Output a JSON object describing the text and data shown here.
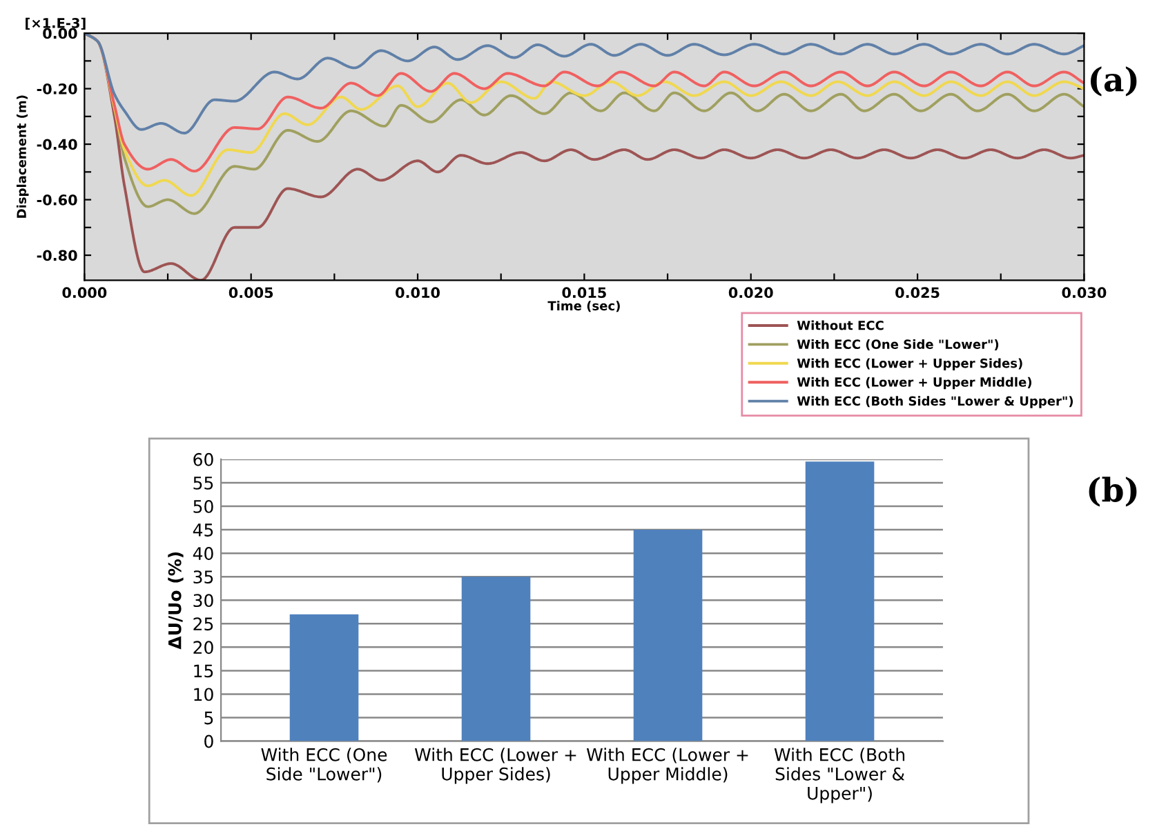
{
  "chart_data": [
    {
      "type": "line",
      "xlabel": "Time (sec)",
      "ylabel": "Displacement (m)",
      "annotations": [
        "[×1.E-3]",
        "(a)"
      ],
      "legend": "bottom",
      "xlim": [
        0,
        0.03
      ],
      "ylim": [
        -0.89,
        0
      ],
      "xticks": [
        {
          "value": 0,
          "label": "0.000"
        },
        {
          "value": 0.0025,
          "label": null
        },
        {
          "value": 0.005,
          "label": "0.005"
        },
        {
          "value": 0.0075,
          "label": null
        },
        {
          "value": 0.01,
          "label": "0.010"
        },
        {
          "value": 0.0125,
          "label": null
        },
        {
          "value": 0.015,
          "label": "0.015"
        },
        {
          "value": 0.0175,
          "label": null
        },
        {
          "value": 0.02,
          "label": "0.020"
        },
        {
          "value": 0.0225,
          "label": null
        },
        {
          "value": 0.025,
          "label": "0.025"
        },
        {
          "value": 0.0275,
          "label": null
        },
        {
          "value": 0.03,
          "label": "0.030"
        }
      ],
      "yticks": [
        {
          "value": -0.8,
          "label": "-0.80"
        },
        {
          "value": -0.7,
          "label": null
        },
        {
          "value": -0.6,
          "label": "-0.60"
        },
        {
          "value": -0.5,
          "label": null
        },
        {
          "value": -0.4,
          "label": "-0.40"
        },
        {
          "value": -0.3,
          "label": null
        },
        {
          "value": -0.2,
          "label": "-0.20"
        },
        {
          "value": -0.1,
          "label": null
        },
        {
          "value": 0,
          "label": "0.00"
        }
      ],
      "series": [
        {
          "name": "Without ECC",
          "color": "#9e5454",
          "x": [
            0,
            0.0004,
            0.0009,
            0.0012,
            0.0018,
            0.0026,
            0.0035,
            0.0045,
            0.0052,
            0.0061,
            0.0071,
            0.0082,
            0.0089,
            0.01,
            0.0106,
            0.0113,
            0.0121,
            0.0131,
            0.0138,
            0.0146,
            0.0153,
            0.0162,
            0.0169,
            0.0177,
            0.0185,
            0.0192,
            0.02,
            0.0208,
            0.0216,
            0.0224,
            0.0232,
            0.024,
            0.0248,
            0.0256,
            0.0264,
            0.0272,
            0.028,
            0.0288,
            0.0296,
            0.03
          ],
          "values": [
            0,
            -0.03,
            -0.3,
            -0.55,
            -0.86,
            -0.83,
            -0.89,
            -0.7,
            -0.7,
            -0.56,
            -0.59,
            -0.49,
            -0.53,
            -0.46,
            -0.5,
            -0.44,
            -0.47,
            -0.43,
            -0.46,
            -0.42,
            -0.455,
            -0.42,
            -0.455,
            -0.42,
            -0.45,
            -0.42,
            -0.45,
            -0.42,
            -0.45,
            -0.42,
            -0.45,
            -0.42,
            -0.45,
            -0.42,
            -0.45,
            -0.42,
            -0.45,
            -0.42,
            -0.45,
            -0.44
          ]
        },
        {
          "name": "With ECC (One Side \"Lower\")",
          "color": "#a0a060",
          "x": [
            0,
            0.0004,
            0.0009,
            0.0012,
            0.0019,
            0.0025,
            0.0033,
            0.0045,
            0.0051,
            0.0061,
            0.007,
            0.008,
            0.009,
            0.0095,
            0.0104,
            0.0113,
            0.012,
            0.0128,
            0.0138,
            0.0146,
            0.0155,
            0.0162,
            0.0171,
            0.0177,
            0.0186,
            0.0194,
            0.0202,
            0.021,
            0.0218,
            0.0227,
            0.0234,
            0.0243,
            0.0251,
            0.026,
            0.0268,
            0.0277,
            0.0285,
            0.0294,
            0.03
          ],
          "values": [
            0,
            -0.03,
            -0.27,
            -0.45,
            -0.625,
            -0.6,
            -0.65,
            -0.48,
            -0.49,
            -0.35,
            -0.39,
            -0.28,
            -0.335,
            -0.26,
            -0.32,
            -0.24,
            -0.295,
            -0.225,
            -0.29,
            -0.215,
            -0.28,
            -0.215,
            -0.28,
            -0.215,
            -0.28,
            -0.215,
            -0.28,
            -0.22,
            -0.28,
            -0.22,
            -0.28,
            -0.22,
            -0.28,
            -0.22,
            -0.28,
            -0.22,
            -0.28,
            -0.22,
            -0.265
          ]
        },
        {
          "name": "With ECC (Lower + Upper Sides)",
          "color": "#f0d850",
          "x": [
            0,
            0.0004,
            0.0009,
            0.0012,
            0.0019,
            0.0024,
            0.0032,
            0.0043,
            0.005,
            0.006,
            0.0067,
            0.0077,
            0.0083,
            0.0094,
            0.01,
            0.0109,
            0.0116,
            0.0125,
            0.0135,
            0.014,
            0.015,
            0.0158,
            0.0166,
            0.0174,
            0.0183,
            0.0192,
            0.02,
            0.0209,
            0.0218,
            0.0226,
            0.0235,
            0.0243,
            0.0252,
            0.026,
            0.0269,
            0.0277,
            0.0285,
            0.0294,
            0.03
          ],
          "values": [
            0,
            -0.03,
            -0.27,
            -0.42,
            -0.55,
            -0.53,
            -0.585,
            -0.42,
            -0.43,
            -0.29,
            -0.33,
            -0.23,
            -0.275,
            -0.19,
            -0.265,
            -0.18,
            -0.25,
            -0.175,
            -0.235,
            -0.175,
            -0.225,
            -0.175,
            -0.225,
            -0.175,
            -0.225,
            -0.175,
            -0.225,
            -0.175,
            -0.225,
            -0.175,
            -0.225,
            -0.175,
            -0.225,
            -0.175,
            -0.225,
            -0.175,
            -0.225,
            -0.175,
            -0.2
          ]
        },
        {
          "name": "With ECC (Lower + Upper Middle)",
          "color": "#f06060",
          "x": [
            0,
            0.0004,
            0.0009,
            0.0012,
            0.0019,
            0.0026,
            0.0033,
            0.0045,
            0.0052,
            0.0061,
            0.0071,
            0.008,
            0.0088,
            0.0095,
            0.0104,
            0.0111,
            0.012,
            0.0127,
            0.0138,
            0.0144,
            0.0154,
            0.0161,
            0.0171,
            0.0177,
            0.0186,
            0.0192,
            0.0201,
            0.021,
            0.0218,
            0.0227,
            0.0235,
            0.0243,
            0.0252,
            0.026,
            0.0269,
            0.0277,
            0.0285,
            0.0294,
            0.03
          ],
          "values": [
            0,
            -0.03,
            -0.26,
            -0.4,
            -0.49,
            -0.455,
            -0.497,
            -0.34,
            -0.345,
            -0.23,
            -0.27,
            -0.18,
            -0.225,
            -0.145,
            -0.21,
            -0.145,
            -0.2,
            -0.145,
            -0.19,
            -0.14,
            -0.19,
            -0.14,
            -0.19,
            -0.14,
            -0.19,
            -0.14,
            -0.19,
            -0.14,
            -0.19,
            -0.14,
            -0.19,
            -0.14,
            -0.19,
            -0.14,
            -0.19,
            -0.14,
            -0.19,
            -0.14,
            -0.18
          ]
        },
        {
          "name": "With ECC (Both Sides \"Lower & Upper\")",
          "color": "#6080a8",
          "x": [
            0,
            0.0004,
            0.0009,
            0.0012,
            0.0017,
            0.0023,
            0.003,
            0.0039,
            0.0045,
            0.0057,
            0.0064,
            0.0073,
            0.0081,
            0.0089,
            0.0097,
            0.0105,
            0.0112,
            0.0121,
            0.0129,
            0.0136,
            0.0144,
            0.0152,
            0.0159,
            0.0167,
            0.0175,
            0.0183,
            0.0192,
            0.0201,
            0.021,
            0.0218,
            0.0227,
            0.0235,
            0.0243,
            0.0252,
            0.026,
            0.0269,
            0.0277,
            0.0285,
            0.0294,
            0.03
          ],
          "values": [
            0,
            -0.03,
            -0.22,
            -0.28,
            -0.347,
            -0.325,
            -0.36,
            -0.24,
            -0.245,
            -0.14,
            -0.165,
            -0.09,
            -0.125,
            -0.063,
            -0.1,
            -0.05,
            -0.095,
            -0.045,
            -0.088,
            -0.042,
            -0.083,
            -0.04,
            -0.08,
            -0.04,
            -0.08,
            -0.04,
            -0.078,
            -0.04,
            -0.075,
            -0.04,
            -0.075,
            -0.04,
            -0.075,
            -0.04,
            -0.075,
            -0.04,
            -0.075,
            -0.04,
            -0.075,
            -0.045
          ]
        }
      ]
    },
    {
      "type": "bar",
      "ylabel": "ΔU/Uo (%)",
      "annotations": [
        "(b)"
      ],
      "grid": "y",
      "color": "#4f81bd",
      "categories": [
        "With ECC (One\nSide \"Lower\")",
        "With ECC (Lower +\nUpper Sides)",
        "With ECC (Lower +\nUpper Middle)",
        "With ECC (Both\nSides \"Lower &\nUpper\")"
      ],
      "values": [
        27,
        35,
        45,
        59.5
      ],
      "ylim": [
        0,
        60
      ],
      "yticks": [
        0,
        5,
        10,
        15,
        20,
        25,
        30,
        35,
        40,
        45,
        50,
        55,
        60
      ]
    }
  ]
}
